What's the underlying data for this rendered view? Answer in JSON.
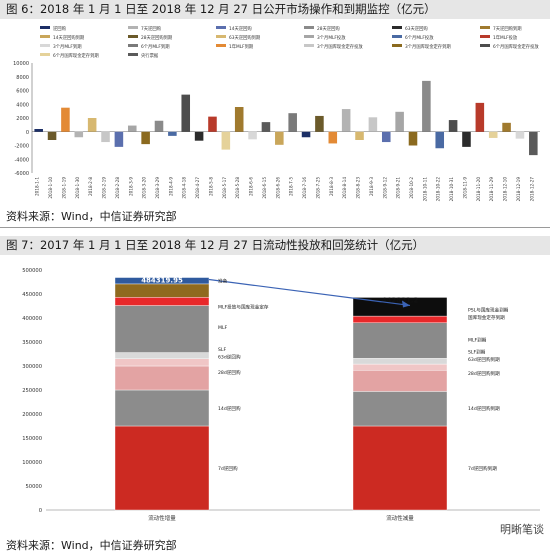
{
  "figure6": {
    "title": "图 6：2018 年 1 月 1 日至 2018 年 12 月 27 日公开市场操作和到期监控（亿元）",
    "source": "资料来源：Wind，中信证券研究部",
    "chart_data": {
      "type": "bar",
      "title": "",
      "ylim": [
        -6000,
        10000
      ],
      "y_ticks": [
        10000,
        8000,
        6000,
        4000,
        2000,
        0,
        -2000,
        -4000,
        -6000
      ],
      "legend_position": "top",
      "legend": [
        "逆回购",
        "7天逆回购",
        "14天逆回购",
        "28天逆回购",
        "63天逆回购",
        "7天逆回购到期",
        "14天逆回购到期",
        "28天逆回购到期",
        "63天逆回购到期",
        "3个月MLF投放",
        "6个月MLF投放",
        "1年MLF投放",
        "3个月MLF到期",
        "6个月MLF到期",
        "1年MLF到期",
        "3个月国库现金定存投放",
        "3个月国库现金定存到期",
        "6个月国库现金定存投放",
        "6个月国库现金定存到期",
        "央行票据"
      ],
      "x_dates": [
        "2018-1-1",
        "2018-1-10",
        "2018-1-19",
        "2018-1-30",
        "2018-2-8",
        "2018-2-19",
        "2018-2-28",
        "2018-3-9",
        "2018-3-20",
        "2018-3-29",
        "2018-4-9",
        "2018-4-18",
        "2018-4-27",
        "2018-5-8",
        "2018-5-17",
        "2018-5-28",
        "2018-6-6",
        "2018-6-15",
        "2018-6-26",
        "2018-7-5",
        "2018-7-16",
        "2018-7-25",
        "2018-8-3",
        "2018-8-14",
        "2018-8-23",
        "2018-9-3",
        "2018-9-12",
        "2018-9-21",
        "2018-10-2",
        "2018-10-11",
        "2018-10-22",
        "2018-10-31",
        "2018-11-9",
        "2018-11-20",
        "2018-11-29",
        "2018-12-10",
        "2018-12-19",
        "2018-12-27"
      ],
      "net_values": [
        400,
        -1200,
        3500,
        -800,
        2000,
        -1500,
        -2200,
        900,
        -1800,
        1600,
        -600,
        5400,
        -1300,
        2200,
        -2600,
        3600,
        -1100,
        1400,
        -1900,
        2700,
        -800,
        2300,
        -1700,
        3300,
        -1200,
        2100,
        -1500,
        2900,
        -2000,
        7400,
        -2400,
        1700,
        -2200,
        4200,
        -900,
        1300,
        -1000,
        -3400
      ],
      "colors": [
        "#1c2f66",
        "#b3b3b3",
        "#5b6fae",
        "#8a8a8a",
        "#2b2b2b",
        "#a07a2e",
        "#c9a65a",
        "#6b5a2a",
        "#d7b870",
        "#a6a6a6",
        "#4a6aa3",
        "#b83a2a",
        "#d8d8d8",
        "#7a7a7a",
        "#e38a35",
        "#c7c7c7",
        "#8b6a1f",
        "#4d4d4d",
        "#e5d29a",
        "#5a5a5a"
      ]
    }
  },
  "figure7": {
    "title": "图 7：2017 年 1 月 1 日至 2018 年 12 月 27 日流动性投放和回笼统计（亿元）",
    "source": "资料来源：Wind，中信证券研究部",
    "chart_data": {
      "type": "bar",
      "title": "",
      "categories": [
        "流动性增量",
        "流动性减量"
      ],
      "ylim": [
        0,
        500000
      ],
      "y_ticks": [
        500000,
        450000,
        400000,
        350000,
        300000,
        250000,
        200000,
        150000,
        100000,
        50000,
        0
      ],
      "totals": [
        484319.95,
        442821.2
      ],
      "totals_labels": [
        "484319.95",
        "442821.2"
      ],
      "series": [
        {
          "name": "7d逆回购",
          "color": "#cc2a22",
          "values": [
            175000,
            175000
          ]
        },
        {
          "name": "14d逆回购",
          "color": "#8c8c8c",
          "values": [
            75000,
            72000
          ]
        },
        {
          "name": "28d逆回购",
          "color": "#e3a3a3",
          "values": [
            50000,
            44000
          ]
        },
        {
          "name": "63d逆回购",
          "color": "#f0c6c6",
          "values": [
            15000,
            13000
          ]
        },
        {
          "name": "SLF",
          "color": "#d9d9d9",
          "values": [
            13000,
            12000
          ]
        },
        {
          "name": "MLF",
          "color": "#8a8a8a",
          "values": [
            98000,
            74000
          ]
        },
        {
          "name": "国库现金定存",
          "color": "#e8282a",
          "values": [
            17000,
            14000
          ]
        },
        {
          "name": "央行票据",
          "color": "#8f6a1f",
          "values": [
            28000,
            0
          ]
        },
        {
          "name": "准备",
          "color": "#2f5a9e",
          "values": [
            13319.95,
            0
          ]
        },
        {
          "name": "PSL",
          "color": "#0d0d0d",
          "values": [
            0,
            38821.2
          ]
        }
      ],
      "left_labels": [
        "准备",
        "MLF投放与国库现金定存",
        "MLF",
        "SLF",
        "63d逆回购",
        "28d逆回购",
        "14d逆回购",
        "7d逆回购"
      ],
      "right_labels": [
        "PSL与国库现金到期",
        "国库现金定存到期",
        "MLF到期",
        "SLF到期",
        "63d逆回购到期",
        "28d逆回购到期",
        "14d逆回购到期",
        "7d逆回购到期"
      ]
    }
  },
  "watermark": "明晰笔谈"
}
